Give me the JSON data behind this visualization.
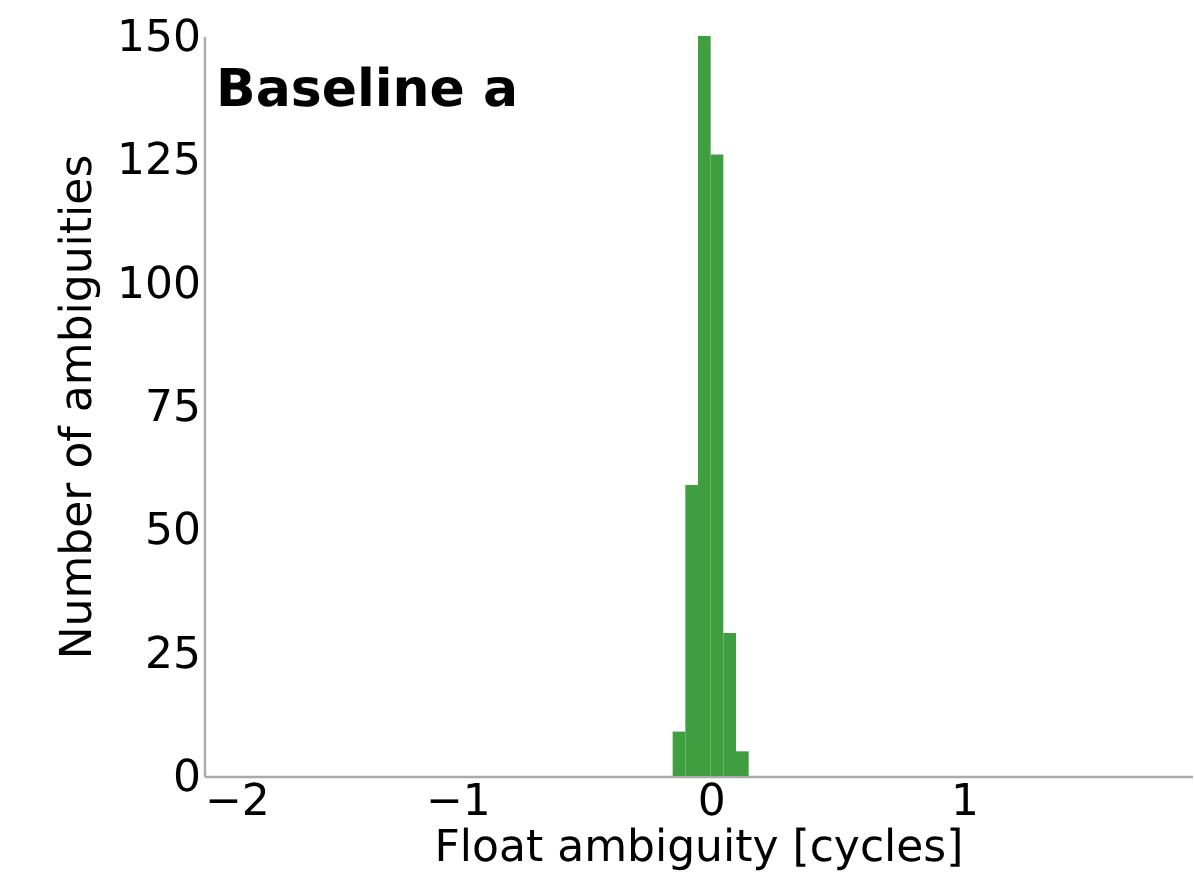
{
  "chart_data": {
    "type": "histogram",
    "xlabel": "Float ambiguity [cycles]",
    "ylabel": "Number of ambiguities",
    "annotations": [
      "Baseline a"
    ],
    "bins": [
      -0.15,
      -0.1,
      -0.05,
      0,
      0.05,
      0.1,
      0.15
    ],
    "values": [
      9,
      59,
      150,
      126,
      29,
      5
    ],
    "color": "#3f9e3f",
    "xlim": [
      -2,
      1.9
    ],
    "xticks": [
      -2,
      -1,
      0,
      1
    ],
    "ylim": [
      0,
      150
    ],
    "yticks": [
      0,
      25,
      50,
      75,
      100,
      125,
      150
    ],
    "grid": false
  }
}
